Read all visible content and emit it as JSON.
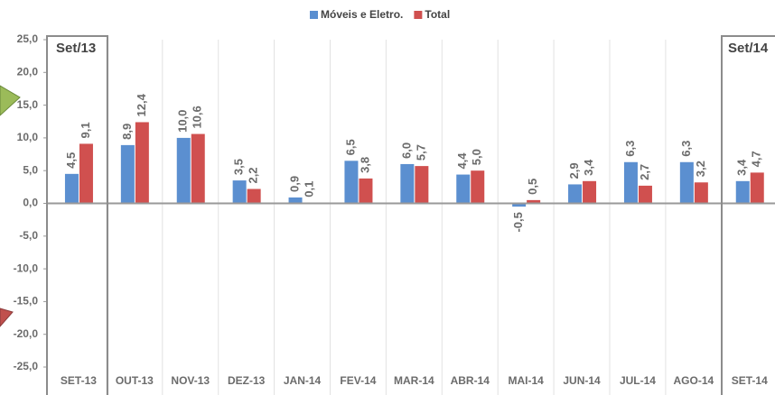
{
  "chart_data": {
    "type": "bar",
    "categories": [
      "SET-13",
      "OUT-13",
      "NOV-13",
      "DEZ-13",
      "JAN-14",
      "FEV-14",
      "MAR-14",
      "ABR-14",
      "MAI-14",
      "JUN-14",
      "JUL-14",
      "AGO-14",
      "SET-14"
    ],
    "series": [
      {
        "name": "Móveis e Eletro.",
        "color": "#5b8fd0",
        "values": [
          4.5,
          8.9,
          10.0,
          3.5,
          0.9,
          6.5,
          6.0,
          4.4,
          -0.5,
          2.9,
          6.3,
          6.3,
          3.4
        ],
        "value_labels": [
          "4,5",
          "8,9",
          "10,0",
          "3,5",
          "0,9",
          "6,5",
          "6,0",
          "4,4",
          "-0,5",
          "2,9",
          "6,3",
          "6,3",
          "3,4"
        ]
      },
      {
        "name": "Total",
        "color": "#d0504f",
        "values": [
          9.1,
          12.4,
          10.6,
          2.2,
          0.1,
          3.8,
          5.7,
          5.0,
          0.5,
          3.4,
          2.7,
          3.2,
          4.7
        ],
        "value_labels": [
          "9,1",
          "12,4",
          "10,6",
          "2,2",
          "0,1",
          "3,8",
          "5,7",
          "5,0",
          "0,5",
          "3,4",
          "2,7",
          "3,2",
          "4,7"
        ]
      }
    ],
    "ylim": [
      -25,
      25
    ],
    "yticks": [
      {
        "value": 25,
        "label": "25,0"
      },
      {
        "value": 20,
        "label": "20,0"
      },
      {
        "value": 15,
        "label": "15,0"
      },
      {
        "value": 10,
        "label": "10,0"
      },
      {
        "value": 5,
        "label": "5,0"
      },
      {
        "value": 0,
        "label": "0,0"
      },
      {
        "value": -5,
        "label": "-5,0"
      },
      {
        "value": -10,
        "label": "-10,0"
      },
      {
        "value": -15,
        "label": "-15,0"
      },
      {
        "value": -20,
        "label": "-20,0"
      },
      {
        "value": -25,
        "label": "-25,0"
      }
    ],
    "annotations": [
      "Set/13",
      "Set/14"
    ],
    "legend": "top"
  }
}
